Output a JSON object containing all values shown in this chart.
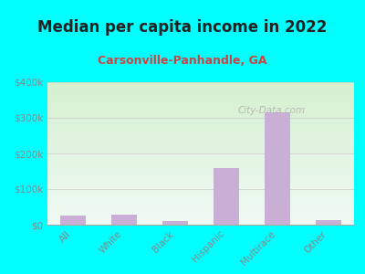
{
  "title": "Median per capita income in 2022",
  "subtitle": "Carsonville-Panhandle, GA",
  "categories": [
    "All",
    "White",
    "Black",
    "Hispanic",
    "Multirace",
    "Other"
  ],
  "values": [
    25000,
    28000,
    10000,
    160000,
    315000,
    12000
  ],
  "bar_color": "#c9aed6",
  "background_color": "#00ffff",
  "title_color": "#222222",
  "subtitle_color": "#cc4444",
  "tick_color": "#888888",
  "ylim": [
    0,
    400000
  ],
  "yticks": [
    0,
    100000,
    200000,
    300000,
    400000
  ],
  "ytick_labels": [
    "$0",
    "$100k",
    "$200k",
    "$300k",
    "$400k"
  ],
  "watermark": "City-Data.com",
  "title_fontsize": 12,
  "subtitle_fontsize": 9,
  "grad_top_color": "#d6f0d0",
  "grad_bottom_color": "#f0faf4"
}
